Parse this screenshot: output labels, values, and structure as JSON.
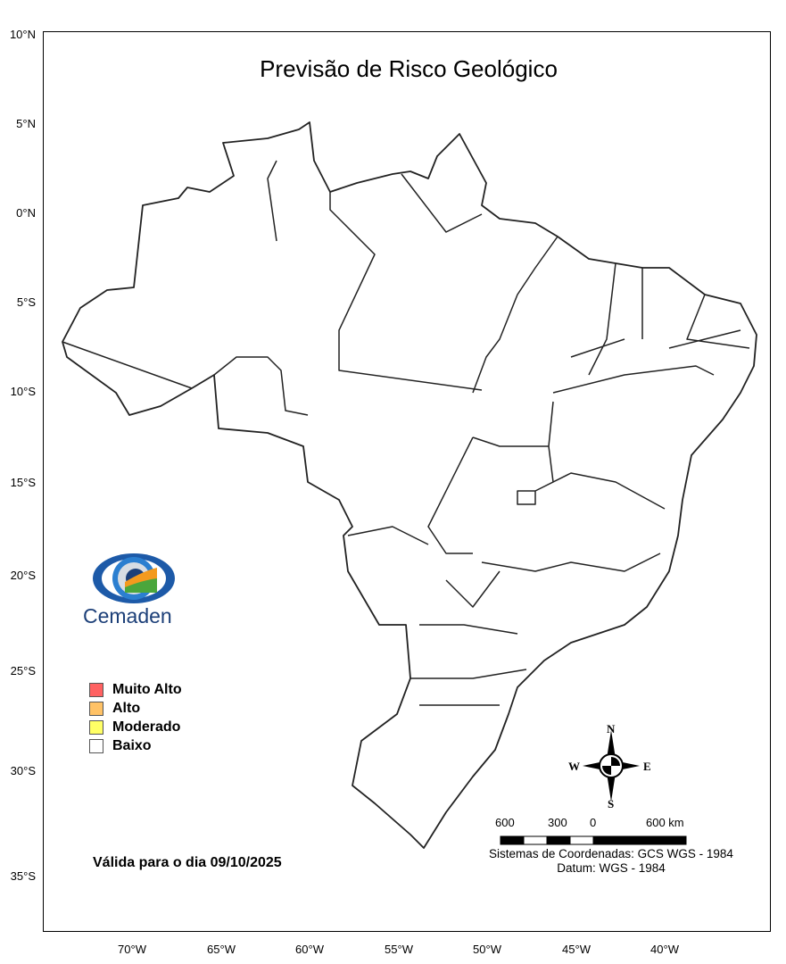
{
  "title": "Previsão de Risco Geológico",
  "lat_labels": [
    "10°N",
    "5°N",
    "0°N",
    "5°S",
    "10°S",
    "15°S",
    "20°S",
    "25°S",
    "30°S",
    "35°S"
  ],
  "lon_labels": [
    "70°W",
    "65°W",
    "60°W",
    "55°W",
    "50°W",
    "45°W",
    "40°W"
  ],
  "logo": {
    "text": "Cemaden"
  },
  "legend": [
    {
      "label": "Muito Alto",
      "color": "#ff6161"
    },
    {
      "label": "Alto",
      "color": "#ffc266"
    },
    {
      "label": "Moderado",
      "color": "#ffff66"
    },
    {
      "label": "Baixo",
      "color": "#ffffff"
    }
  ],
  "valid_date": "Válida para o dia 09/10/2025",
  "compass": {
    "n": "N",
    "s": "S",
    "e": "E",
    "w": "W"
  },
  "scale_bar": {
    "labels": [
      "600",
      "300",
      "0",
      "600 km"
    ]
  },
  "coord_system": "Sistemas de Coordenadas: GCS WGS - 1984",
  "datum": "Datum: WGS - 1984"
}
